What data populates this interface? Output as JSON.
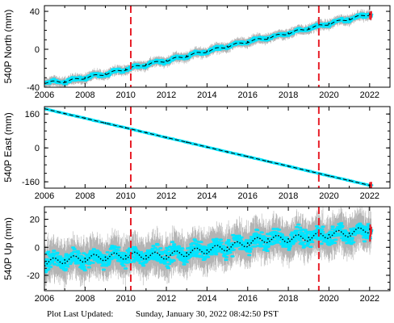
{
  "footer": {
    "label": "Plot Last Updated:",
    "timestamp": "Sunday, January 30, 2022 08:42:50 PST"
  },
  "colors": {
    "raw_error": "#b4b4b4",
    "filtered": "#00e5ff",
    "model": "#000000",
    "event_marker": "#e8202a",
    "recent": "#e8202a"
  },
  "chart_data": [
    {
      "type": "scatter",
      "station": "540P",
      "component": "north",
      "ylabel": "540P North (mm)",
      "xlim": [
        2006,
        2023
      ],
      "ylim": [
        -40,
        46
      ],
      "x_ticks": [
        "2006",
        "2008",
        "2010",
        "2012",
        "2014",
        "2016",
        "2018",
        "2020",
        "2022"
      ],
      "y_ticks": [
        "-40",
        "0",
        "40"
      ],
      "grid": false,
      "events_years": [
        2010.25,
        2019.5
      ],
      "series": [
        {
          "x": [
            2006.0,
            2007.0,
            2008.0,
            2009.0,
            2010.0,
            2011.0,
            2012.0,
            2013.0,
            2014.0,
            2015.0,
            2016.0,
            2017.0,
            2018.0,
            2019.0,
            2020.0,
            2021.0,
            2022.0
          ],
          "y": [
            -35,
            -34,
            -30,
            -26,
            -21,
            -16,
            -12,
            -7,
            -2,
            3,
            8,
            12,
            17,
            22,
            27,
            32,
            37
          ]
        }
      ]
    },
    {
      "type": "scatter",
      "station": "540P",
      "component": "east",
      "ylabel": "540P East (mm)",
      "xlim": [
        2006,
        2023
      ],
      "ylim": [
        -190,
        195
      ],
      "x_ticks": [
        "2006",
        "2008",
        "2010",
        "2012",
        "2014",
        "2016",
        "2018",
        "2020",
        "2022"
      ],
      "y_ticks": [
        "-160",
        "0",
        "160"
      ],
      "grid": false,
      "events_years": [
        2010.25,
        2019.5
      ],
      "series": [
        {
          "x": [
            2006.0,
            2007.0,
            2008.0,
            2009.0,
            2010.0,
            2011.0,
            2012.0,
            2013.0,
            2014.0,
            2015.0,
            2016.0,
            2017.0,
            2018.0,
            2019.0,
            2020.0,
            2021.0,
            2022.0
          ],
          "y": [
            185,
            162,
            140,
            117,
            95,
            72,
            49,
            27,
            4,
            -19,
            -41,
            -64,
            -86,
            -109,
            -132,
            -154,
            -177
          ]
        }
      ]
    },
    {
      "type": "scatter",
      "station": "540P",
      "component": "up",
      "ylabel": "540P Up (mm)",
      "xlim": [
        2006,
        2023
      ],
      "ylim": [
        -31,
        29
      ],
      "x_ticks": [
        "2006",
        "2008",
        "2010",
        "2012",
        "2014",
        "2016",
        "2018",
        "2020",
        "2022"
      ],
      "y_ticks": [
        "-20",
        "0",
        "20"
      ],
      "grid": false,
      "events_years": [
        2010.25,
        2019.5
      ],
      "series": [
        {
          "x": [
            2006.0,
            2007.0,
            2008.0,
            2009.0,
            2010.0,
            2011.0,
            2012.0,
            2013.0,
            2014.0,
            2015.0,
            2016.0,
            2017.0,
            2018.0,
            2019.0,
            2020.0,
            2021.0,
            2022.0
          ],
          "y": [
            -11,
            -9,
            -8,
            -7,
            -6,
            -6,
            -6,
            -4,
            -2,
            0,
            3,
            6,
            6,
            7,
            9,
            10,
            13
          ]
        }
      ]
    }
  ]
}
